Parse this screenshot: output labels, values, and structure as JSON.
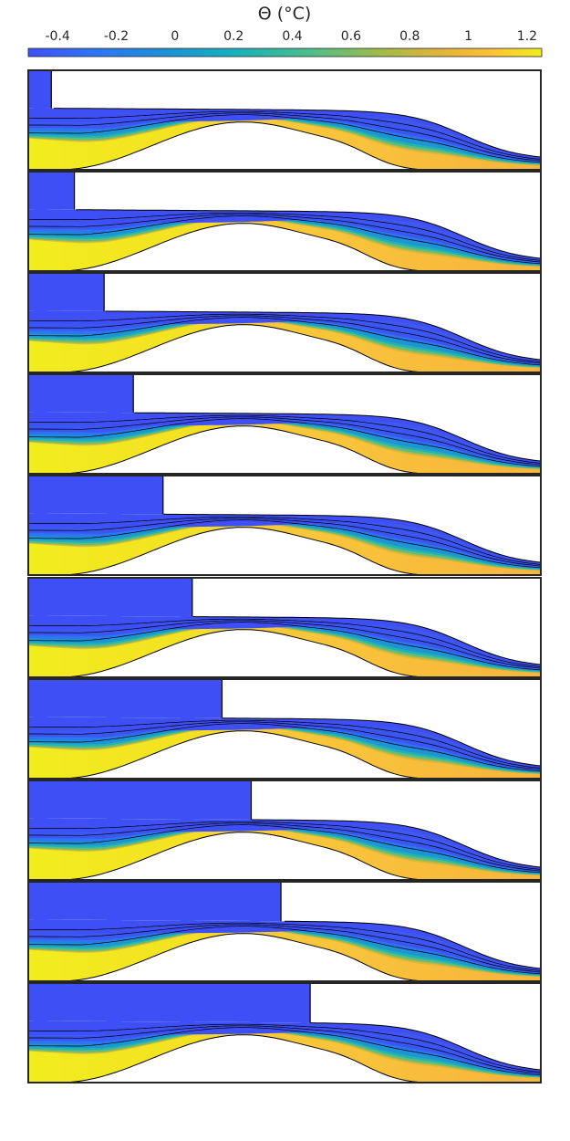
{
  "chart_data": {
    "type": "heatmap",
    "colorbar": {
      "title": "Θ (°C)",
      "range": [
        -0.5,
        1.25
      ],
      "ticks": [
        -0.4,
        -0.2,
        0,
        0.2,
        0.4,
        0.6,
        0.8,
        1,
        1.2
      ],
      "tick_labels": [
        "-0.4",
        "-0.2",
        "0",
        "0.2",
        "0.4",
        "0.6",
        "0.8",
        "1",
        "1.2"
      ],
      "colormap": "parula",
      "stops": [
        [
          0.0,
          "#3e50f5"
        ],
        [
          0.12,
          "#2f72f5"
        ],
        [
          0.26,
          "#1e8fd8"
        ],
        [
          0.4,
          "#16b0be"
        ],
        [
          0.55,
          "#4cbe8a"
        ],
        [
          0.68,
          "#9dbb4c"
        ],
        [
          0.8,
          "#e0b43a"
        ],
        [
          0.9,
          "#fcc037"
        ],
        [
          1.0,
          "#f2ed1e"
        ]
      ],
      "location": "top"
    },
    "panels": {
      "count": 10,
      "ice_front_fraction": [
        0.045,
        0.09,
        0.148,
        0.205,
        0.263,
        0.32,
        0.378,
        0.435,
        0.493,
        0.55
      ],
      "domain_fill": "white",
      "grid": false
    }
  },
  "colors": {
    "cold_water": "#3e50f5",
    "warm_water": "#f2ed1e",
    "outline": "#000000"
  }
}
